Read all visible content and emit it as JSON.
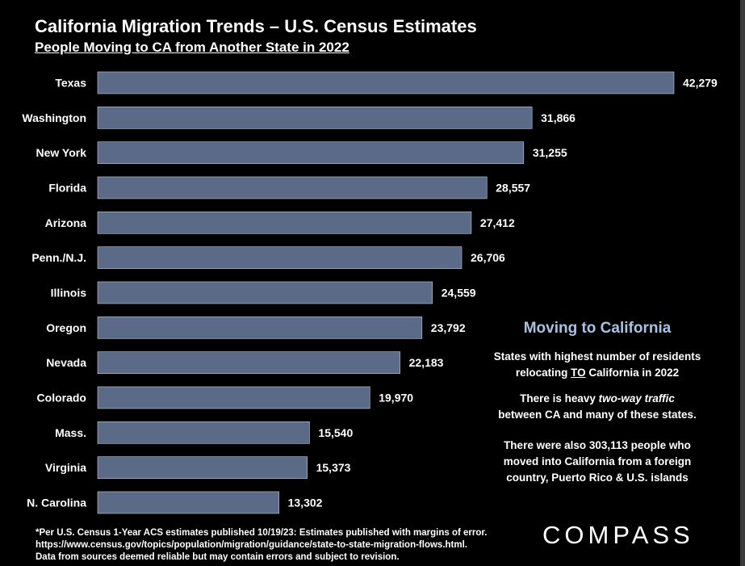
{
  "title": "California Migration Trends – U.S. Census Estimates",
  "subtitle": "People Moving to CA from Another State in 2022",
  "chart_data": {
    "type": "bar",
    "orientation": "horizontal",
    "categories": [
      "Texas",
      "Washington",
      "New York",
      "Florida",
      "Arizona",
      "Penn./N.J.",
      "Illinois",
      "Oregon",
      "Nevada",
      "Colorado",
      "Mass.",
      "Virginia",
      "N. Carolina"
    ],
    "values": [
      42279,
      31866,
      31255,
      28557,
      27412,
      26706,
      24559,
      23792,
      22183,
      19970,
      15540,
      15373,
      13302
    ],
    "value_labels": [
      "42,279",
      "31,866",
      "31,255",
      "28,557",
      "27,412",
      "26,706",
      "24,559",
      "23,792",
      "22,183",
      "19,970",
      "15,540",
      "15,373",
      "13,302"
    ],
    "title": "California Migration Trends – U.S. Census Estimates",
    "subtitle": "People Moving to CA from Another State in 2022",
    "xlabel": "",
    "ylabel": "",
    "xlim": [
      0,
      42279
    ],
    "grid": false,
    "bar_color": "#5a6a87",
    "bar_edge_color": "#c5cedc"
  },
  "note": {
    "heading": "Moving to California",
    "p1_line1": "States with highest number of  residents",
    "p1_pre": "relocating ",
    "p1_emph": "TO",
    "p1_post": "  California in 2022",
    "p2_pre": "There is heavy ",
    "p2_emph": "two-way traffic",
    "p2_line2": "between CA and many of these states.",
    "p3_line1": "There were also 303,113 people who",
    "p3_line2": "moved into California from a foreign",
    "p3_line3": "country, Puerto Rico & U.S. islands"
  },
  "footnote": {
    "line1": "*Per U.S. Census 1-Year ACS estimates published 10/19/23: Estimates published with margins of error.",
    "line2": "https://www.census.gov/topics/population/migration/guidance/state-to-state-migration-flows.html.",
    "line3": "Data from sources deemed reliable but may contain errors and subject to revision."
  },
  "logo": "COMPASS",
  "colors": {
    "background": "#000000",
    "bar": "#5a6a87",
    "heading_accent": "#a9c2e3"
  }
}
